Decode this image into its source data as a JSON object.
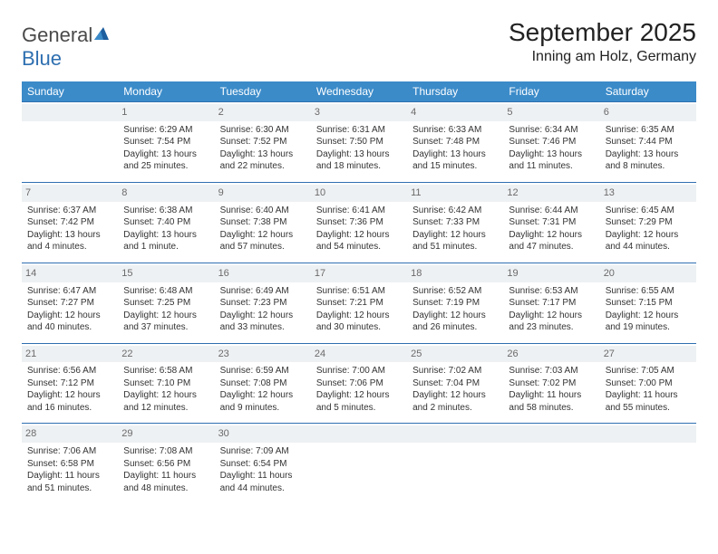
{
  "brand": {
    "name_a": "General",
    "name_b": "Blue"
  },
  "title": "September 2025",
  "location": "Inning am Holz, Germany",
  "colors": {
    "header_bg": "#3b8bc9",
    "rule": "#2e6fb0",
    "daynum_bg": "#eef1f3",
    "daynum_fg": "#6a6a6a"
  },
  "day_headers": [
    "Sunday",
    "Monday",
    "Tuesday",
    "Wednesday",
    "Thursday",
    "Friday",
    "Saturday"
  ],
  "weeks": [
    [
      null,
      {
        "n": "1",
        "sr": "Sunrise: 6:29 AM",
        "ss": "Sunset: 7:54 PM",
        "dl": "Daylight: 13 hours and 25 minutes."
      },
      {
        "n": "2",
        "sr": "Sunrise: 6:30 AM",
        "ss": "Sunset: 7:52 PM",
        "dl": "Daylight: 13 hours and 22 minutes."
      },
      {
        "n": "3",
        "sr": "Sunrise: 6:31 AM",
        "ss": "Sunset: 7:50 PM",
        "dl": "Daylight: 13 hours and 18 minutes."
      },
      {
        "n": "4",
        "sr": "Sunrise: 6:33 AM",
        "ss": "Sunset: 7:48 PM",
        "dl": "Daylight: 13 hours and 15 minutes."
      },
      {
        "n": "5",
        "sr": "Sunrise: 6:34 AM",
        "ss": "Sunset: 7:46 PM",
        "dl": "Daylight: 13 hours and 11 minutes."
      },
      {
        "n": "6",
        "sr": "Sunrise: 6:35 AM",
        "ss": "Sunset: 7:44 PM",
        "dl": "Daylight: 13 hours and 8 minutes."
      }
    ],
    [
      {
        "n": "7",
        "sr": "Sunrise: 6:37 AM",
        "ss": "Sunset: 7:42 PM",
        "dl": "Daylight: 13 hours and 4 minutes."
      },
      {
        "n": "8",
        "sr": "Sunrise: 6:38 AM",
        "ss": "Sunset: 7:40 PM",
        "dl": "Daylight: 13 hours and 1 minute."
      },
      {
        "n": "9",
        "sr": "Sunrise: 6:40 AM",
        "ss": "Sunset: 7:38 PM",
        "dl": "Daylight: 12 hours and 57 minutes."
      },
      {
        "n": "10",
        "sr": "Sunrise: 6:41 AM",
        "ss": "Sunset: 7:36 PM",
        "dl": "Daylight: 12 hours and 54 minutes."
      },
      {
        "n": "11",
        "sr": "Sunrise: 6:42 AM",
        "ss": "Sunset: 7:33 PM",
        "dl": "Daylight: 12 hours and 51 minutes."
      },
      {
        "n": "12",
        "sr": "Sunrise: 6:44 AM",
        "ss": "Sunset: 7:31 PM",
        "dl": "Daylight: 12 hours and 47 minutes."
      },
      {
        "n": "13",
        "sr": "Sunrise: 6:45 AM",
        "ss": "Sunset: 7:29 PM",
        "dl": "Daylight: 12 hours and 44 minutes."
      }
    ],
    [
      {
        "n": "14",
        "sr": "Sunrise: 6:47 AM",
        "ss": "Sunset: 7:27 PM",
        "dl": "Daylight: 12 hours and 40 minutes."
      },
      {
        "n": "15",
        "sr": "Sunrise: 6:48 AM",
        "ss": "Sunset: 7:25 PM",
        "dl": "Daylight: 12 hours and 37 minutes."
      },
      {
        "n": "16",
        "sr": "Sunrise: 6:49 AM",
        "ss": "Sunset: 7:23 PM",
        "dl": "Daylight: 12 hours and 33 minutes."
      },
      {
        "n": "17",
        "sr": "Sunrise: 6:51 AM",
        "ss": "Sunset: 7:21 PM",
        "dl": "Daylight: 12 hours and 30 minutes."
      },
      {
        "n": "18",
        "sr": "Sunrise: 6:52 AM",
        "ss": "Sunset: 7:19 PM",
        "dl": "Daylight: 12 hours and 26 minutes."
      },
      {
        "n": "19",
        "sr": "Sunrise: 6:53 AM",
        "ss": "Sunset: 7:17 PM",
        "dl": "Daylight: 12 hours and 23 minutes."
      },
      {
        "n": "20",
        "sr": "Sunrise: 6:55 AM",
        "ss": "Sunset: 7:15 PM",
        "dl": "Daylight: 12 hours and 19 minutes."
      }
    ],
    [
      {
        "n": "21",
        "sr": "Sunrise: 6:56 AM",
        "ss": "Sunset: 7:12 PM",
        "dl": "Daylight: 12 hours and 16 minutes."
      },
      {
        "n": "22",
        "sr": "Sunrise: 6:58 AM",
        "ss": "Sunset: 7:10 PM",
        "dl": "Daylight: 12 hours and 12 minutes."
      },
      {
        "n": "23",
        "sr": "Sunrise: 6:59 AM",
        "ss": "Sunset: 7:08 PM",
        "dl": "Daylight: 12 hours and 9 minutes."
      },
      {
        "n": "24",
        "sr": "Sunrise: 7:00 AM",
        "ss": "Sunset: 7:06 PM",
        "dl": "Daylight: 12 hours and 5 minutes."
      },
      {
        "n": "25",
        "sr": "Sunrise: 7:02 AM",
        "ss": "Sunset: 7:04 PM",
        "dl": "Daylight: 12 hours and 2 minutes."
      },
      {
        "n": "26",
        "sr": "Sunrise: 7:03 AM",
        "ss": "Sunset: 7:02 PM",
        "dl": "Daylight: 11 hours and 58 minutes."
      },
      {
        "n": "27",
        "sr": "Sunrise: 7:05 AM",
        "ss": "Sunset: 7:00 PM",
        "dl": "Daylight: 11 hours and 55 minutes."
      }
    ],
    [
      {
        "n": "28",
        "sr": "Sunrise: 7:06 AM",
        "ss": "Sunset: 6:58 PM",
        "dl": "Daylight: 11 hours and 51 minutes."
      },
      {
        "n": "29",
        "sr": "Sunrise: 7:08 AM",
        "ss": "Sunset: 6:56 PM",
        "dl": "Daylight: 11 hours and 48 minutes."
      },
      {
        "n": "30",
        "sr": "Sunrise: 7:09 AM",
        "ss": "Sunset: 6:54 PM",
        "dl": "Daylight: 11 hours and 44 minutes."
      },
      null,
      null,
      null,
      null
    ]
  ]
}
